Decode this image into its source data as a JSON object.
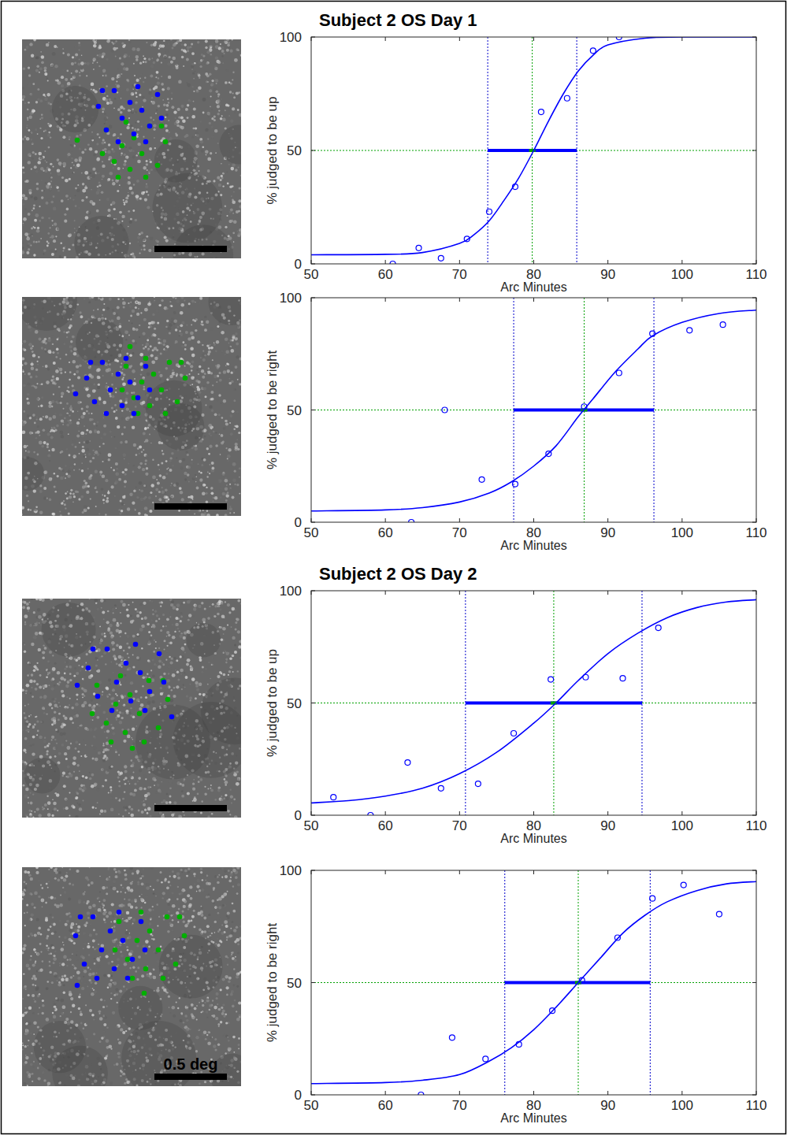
{
  "chart_data": [
    {
      "type": "scatter",
      "xlim": [
        0,
        278
      ],
      "ylim": [
        278,
        0
      ],
      "tick_labels": false,
      "series": [
        {
          "color": "#0000ff",
          "marker": "circle",
          "x": [
            97,
            107,
            117,
            127,
            137,
            142,
            152,
            162,
            172,
            177,
            122,
            147,
            157,
            102
          ],
          "values": [
            85,
            115,
            65,
            100,
            80,
            120,
            90,
            110,
            70,
            100,
            130,
            60,
            130,
            65
          ]
        },
        {
          "color": "#00b000",
          "marker": "circle",
          "x": [
            182,
            172,
            162,
            152,
            142,
            137,
            127,
            117,
            107,
            102,
            157,
            132,
            122,
            177,
            70
          ],
          "values": [
            130,
            160,
            110,
            145,
            125,
            165,
            135,
            155,
            115,
            145,
            175,
            105,
            175,
            110,
            128
          ]
        }
      ]
    },
    {
      "type": "line",
      "title": "Subject 2 OS Day 1",
      "x_label": "Arc Minutes",
      "y_label": "% judged to be up",
      "xlim": [
        50,
        110
      ],
      "ylim": [
        0,
        100
      ],
      "xticks": [
        50,
        60,
        70,
        80,
        90,
        100,
        110
      ],
      "yticks": [
        0,
        50,
        100
      ],
      "grid": false,
      "criterion": 50,
      "threshold": 79.8,
      "threshold_range": [
        73.8,
        85.8
      ],
      "series": [
        {
          "type": "scatter",
          "marker": "circle",
          "color": "#0000ff",
          "x": [
            61,
            64.5,
            67.5,
            71,
            74,
            77.5,
            81,
            84.5,
            88,
            91.5
          ],
          "values": [
            0,
            7,
            2.5,
            11,
            23,
            34,
            67,
            73,
            94,
            100
          ]
        },
        {
          "type": "line",
          "line_style": "solid",
          "color": "#0000ff",
          "x": [
            50,
            60,
            65,
            70,
            72,
            74,
            76,
            78,
            80,
            82,
            84,
            86,
            88,
            90,
            95,
            100,
            110
          ],
          "values": [
            4,
            4.2,
            5,
            9,
            13,
            19,
            28,
            38,
            50,
            63,
            75,
            85,
            92,
            96.5,
            99.5,
            100,
            100
          ]
        }
      ]
    },
    {
      "type": "scatter",
      "xlim": [
        0,
        278
      ],
      "ylim": [
        278,
        0
      ],
      "tick_labels": false,
      "series": [
        {
          "color": "#0000ff",
          "marker": "circle",
          "x": [
            82,
            92,
            102,
            112,
            122,
            127,
            137,
            147,
            157,
            162,
            107,
            132,
            142,
            87,
            68
          ],
          "values": [
            103,
            133,
            83,
            118,
            98,
            138,
            108,
            128,
            88,
            118,
            148,
            78,
            148,
            83,
            123
          ]
        },
        {
          "color": "#00b000",
          "marker": "circle",
          "x": [
            207,
            197,
            187,
            177,
            167,
            162,
            152,
            142,
            132,
            127,
            182,
            157,
            147,
            202,
            137
          ],
          "values": [
            103,
            133,
            83,
            118,
            98,
            138,
            108,
            128,
            88,
            118,
            148,
            78,
            148,
            83,
            63
          ]
        }
      ]
    },
    {
      "type": "line",
      "x_label": "Arc Minutes",
      "y_label": "% judged to be right",
      "xlim": [
        50,
        110
      ],
      "ylim": [
        0,
        100
      ],
      "xticks": [
        50,
        60,
        70,
        80,
        90,
        100,
        110
      ],
      "yticks": [
        0,
        50,
        100
      ],
      "grid": false,
      "criterion": 50,
      "threshold": 86.8,
      "threshold_range": [
        77.3,
        96.2
      ],
      "series": [
        {
          "type": "scatter",
          "marker": "circle",
          "color": "#0000ff",
          "x": [
            63.5,
            68,
            73,
            77.5,
            82,
            86.8,
            91.5,
            96,
            101,
            105.5
          ],
          "values": [
            0,
            50,
            19,
            17,
            30.5,
            51.5,
            66.5,
            84,
            85.5,
            88
          ]
        },
        {
          "type": "line",
          "line_style": "solid",
          "color": "#0000ff",
          "x": [
            50,
            60,
            65,
            70,
            74,
            77,
            80,
            83,
            86,
            88,
            91,
            94,
            96,
            100,
            105,
            110
          ],
          "values": [
            5,
            5.5,
            6.5,
            9,
            13,
            18,
            25,
            34,
            47,
            55,
            67,
            77,
            83,
            89,
            93,
            94.5
          ]
        }
      ]
    },
    {
      "type": "scatter",
      "xlim": [
        0,
        278
      ],
      "ylim": [
        278,
        0
      ],
      "tick_labels": false,
      "series": [
        {
          "color": "#0000ff",
          "marker": "circle",
          "x": [
            84,
            96,
            108,
            120,
            132,
            138,
            150,
            162,
            174,
            180,
            114,
            144,
            156,
            90,
            70,
            190
          ],
          "values": [
            88,
            124,
            64,
            106,
            82,
            130,
            94,
            118,
            70,
            106,
            142,
            58,
            142,
            64,
            110,
            150
          ]
        },
        {
          "color": "#00b000",
          "marker": "circle",
          "x": [
            185,
            173,
            161,
            149,
            137,
            131,
            119,
            107,
            95,
            89,
            155,
            125,
            113,
            179,
            140
          ],
          "values": [
            128,
            164,
            104,
            146,
            122,
            170,
            134,
            158,
            110,
            146,
            182,
            98,
            182,
            104,
            190
          ]
        }
      ]
    },
    {
      "type": "line",
      "title": "Subject 2 OS Day 2",
      "x_label": "Arc Minutes",
      "y_label": "% judged to be up",
      "xlim": [
        50,
        110
      ],
      "ylim": [
        0,
        100
      ],
      "xticks": [
        50,
        60,
        70,
        80,
        90,
        100,
        110
      ],
      "yticks": [
        0,
        50,
        100
      ],
      "grid": false,
      "criterion": 50,
      "threshold": 82.7,
      "threshold_range": [
        70.8,
        94.6
      ],
      "series": [
        {
          "type": "scatter",
          "marker": "circle",
          "color": "#0000ff",
          "x": [
            53,
            58,
            63,
            67.5,
            72.5,
            77.3,
            82.3,
            87,
            92,
            96.8
          ],
          "values": [
            8,
            0,
            23.5,
            12,
            14,
            36.5,
            60.5,
            61.5,
            61,
            83.5
          ]
        },
        {
          "type": "line",
          "line_style": "solid",
          "color": "#0000ff",
          "x": [
            50,
            55,
            60,
            65,
            70,
            75,
            80,
            83,
            86,
            90,
            94,
            98,
            102,
            106,
            110
          ],
          "values": [
            5.5,
            6.5,
            8.5,
            12,
            18.5,
            28,
            41,
            50,
            60,
            72,
            81,
            88,
            92.5,
            95,
            96
          ]
        }
      ]
    },
    {
      "type": "scatter",
      "xlim": [
        0,
        278
      ],
      "ylim": [
        278,
        0
      ],
      "tick_labels": false,
      "annotation": "0.5 deg",
      "series": [
        {
          "color": "#0000ff",
          "marker": "circle",
          "x": [
            68,
            79,
            90,
            101,
            112,
            117,
            128,
            140,
            151,
            156,
            95,
            123,
            134,
            74,
            70
          ],
          "values": [
            87,
            123,
            63,
            105,
            81,
            129,
            93,
            117,
            69,
            105,
            141,
            57,
            141,
            63,
            150
          ]
        },
        {
          "color": "#00b000",
          "marker": "circle",
          "x": [
            206,
            195,
            184,
            173,
            162,
            157,
            146,
            134,
            123,
            118,
            179,
            151,
            140,
            200,
            155
          ],
          "values": [
            87,
            123,
            63,
            105,
            81,
            129,
            93,
            117,
            69,
            105,
            141,
            57,
            141,
            63,
            160
          ]
        }
      ]
    },
    {
      "type": "line",
      "x_label": "Arc Minutes",
      "y_label": "% judged to be right",
      "xlim": [
        50,
        110
      ],
      "ylim": [
        0,
        100
      ],
      "xticks": [
        50,
        60,
        70,
        80,
        90,
        100,
        110
      ],
      "yticks": [
        0,
        50,
        100
      ],
      "grid": false,
      "criterion": 50,
      "threshold": 86,
      "threshold_range": [
        76.1,
        95.7
      ],
      "series": [
        {
          "type": "scatter",
          "marker": "circle",
          "color": "#0000ff",
          "x": [
            64.8,
            69,
            73.5,
            78,
            82.5,
            86.5,
            91.3,
            96,
            100.2,
            105
          ],
          "values": [
            0,
            25.5,
            16,
            22.5,
            37.5,
            51,
            70,
            87.5,
            93.5,
            80.5
          ]
        },
        {
          "type": "line",
          "line_style": "solid",
          "color": "#0000ff",
          "x": [
            50,
            60,
            65,
            70,
            74,
            77,
            80,
            83,
            86,
            89,
            92,
            95,
            98,
            102,
            106,
            110
          ],
          "values": [
            5,
            5.5,
            6.5,
            9,
            15,
            21,
            29,
            39,
            50,
            61,
            72,
            80,
            86,
            91,
            94,
            95
          ]
        }
      ]
    }
  ]
}
